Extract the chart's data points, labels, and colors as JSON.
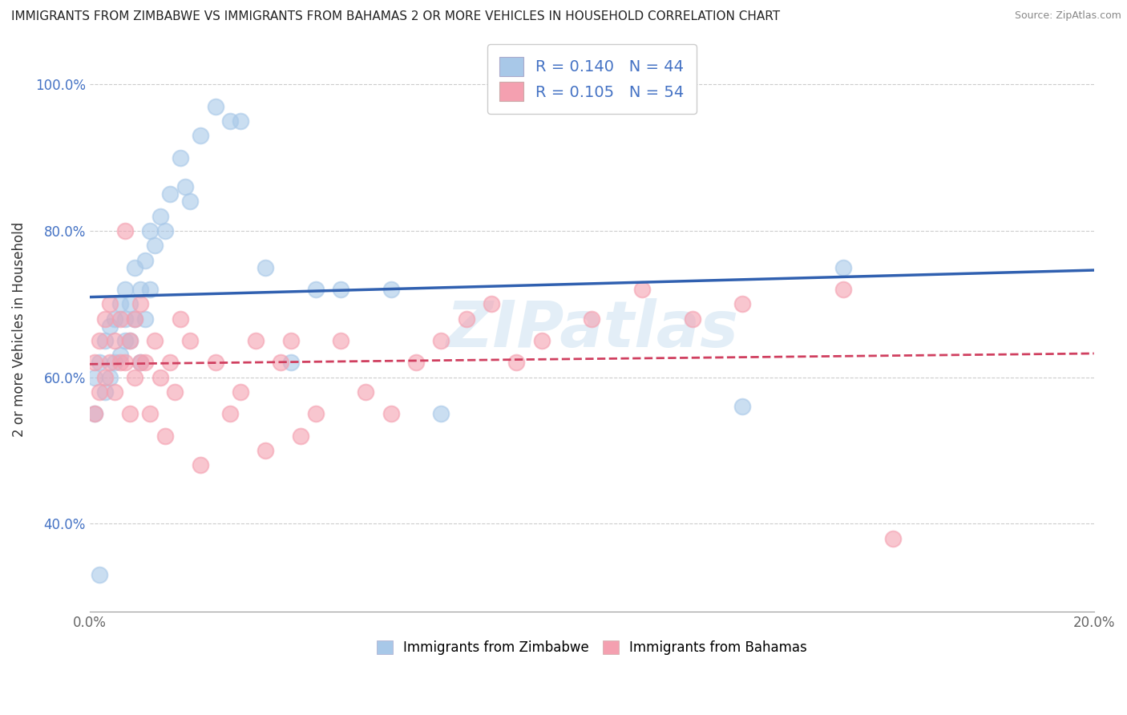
{
  "title": "IMMIGRANTS FROM ZIMBABWE VS IMMIGRANTS FROM BAHAMAS 2 OR MORE VEHICLES IN HOUSEHOLD CORRELATION CHART",
  "source": "Source: ZipAtlas.com",
  "ylabel": "2 or more Vehicles in Household",
  "xlim": [
    0.0,
    0.2
  ],
  "ylim": [
    0.28,
    1.05
  ],
  "xticks": [
    0.0,
    0.04,
    0.08,
    0.12,
    0.16,
    0.2
  ],
  "xticklabels": [
    "0.0%",
    "",
    "",
    "",
    "",
    "20.0%"
  ],
  "yticks": [
    0.4,
    0.6,
    0.8,
    1.0
  ],
  "yticklabels": [
    "40.0%",
    "60.0%",
    "80.0%",
    "100.0%"
  ],
  "legend_r1": "R = 0.140",
  "legend_n1": "N = 44",
  "legend_r2": "R = 0.105",
  "legend_n2": "N = 54",
  "color_zimbabwe": "#a8c8e8",
  "color_bahamas": "#f4a0b0",
  "color_line_zimbabwe": "#3060b0",
  "color_line_bahamas": "#d04060",
  "watermark": "ZIPatlas",
  "zimbabwe_x": [
    0.001,
    0.001,
    0.002,
    0.003,
    0.003,
    0.004,
    0.004,
    0.005,
    0.005,
    0.006,
    0.006,
    0.007,
    0.007,
    0.007,
    0.008,
    0.008,
    0.009,
    0.009,
    0.01,
    0.01,
    0.011,
    0.011,
    0.012,
    0.012,
    0.013,
    0.014,
    0.015,
    0.016,
    0.018,
    0.019,
    0.02,
    0.022,
    0.025,
    0.028,
    0.03,
    0.035,
    0.04,
    0.045,
    0.05,
    0.06,
    0.07,
    0.13,
    0.15,
    0.002
  ],
  "zimbabwe_y": [
    0.55,
    0.6,
    0.62,
    0.58,
    0.65,
    0.6,
    0.67,
    0.62,
    0.68,
    0.63,
    0.7,
    0.65,
    0.72,
    0.68,
    0.7,
    0.65,
    0.68,
    0.75,
    0.62,
    0.72,
    0.68,
    0.76,
    0.72,
    0.8,
    0.78,
    0.82,
    0.8,
    0.85,
    0.9,
    0.86,
    0.84,
    0.93,
    0.97,
    0.95,
    0.95,
    0.75,
    0.62,
    0.72,
    0.72,
    0.72,
    0.55,
    0.56,
    0.75,
    0.33
  ],
  "bahamas_x": [
    0.001,
    0.001,
    0.002,
    0.002,
    0.003,
    0.003,
    0.004,
    0.004,
    0.005,
    0.005,
    0.006,
    0.006,
    0.007,
    0.007,
    0.008,
    0.008,
    0.009,
    0.009,
    0.01,
    0.01,
    0.011,
    0.012,
    0.013,
    0.014,
    0.015,
    0.016,
    0.017,
    0.018,
    0.02,
    0.022,
    0.025,
    0.028,
    0.03,
    0.033,
    0.035,
    0.038,
    0.04,
    0.042,
    0.045,
    0.05,
    0.055,
    0.06,
    0.065,
    0.07,
    0.075,
    0.08,
    0.085,
    0.09,
    0.1,
    0.11,
    0.12,
    0.13,
    0.15,
    0.16
  ],
  "bahamas_y": [
    0.55,
    0.62,
    0.58,
    0.65,
    0.6,
    0.68,
    0.62,
    0.7,
    0.58,
    0.65,
    0.62,
    0.68,
    0.8,
    0.62,
    0.55,
    0.65,
    0.6,
    0.68,
    0.62,
    0.7,
    0.62,
    0.55,
    0.65,
    0.6,
    0.52,
    0.62,
    0.58,
    0.68,
    0.65,
    0.48,
    0.62,
    0.55,
    0.58,
    0.65,
    0.5,
    0.62,
    0.65,
    0.52,
    0.55,
    0.65,
    0.58,
    0.55,
    0.62,
    0.65,
    0.68,
    0.7,
    0.62,
    0.65,
    0.68,
    0.72,
    0.68,
    0.7,
    0.72,
    0.38
  ],
  "dot_size": 200,
  "dot_linewidth": 1.5
}
